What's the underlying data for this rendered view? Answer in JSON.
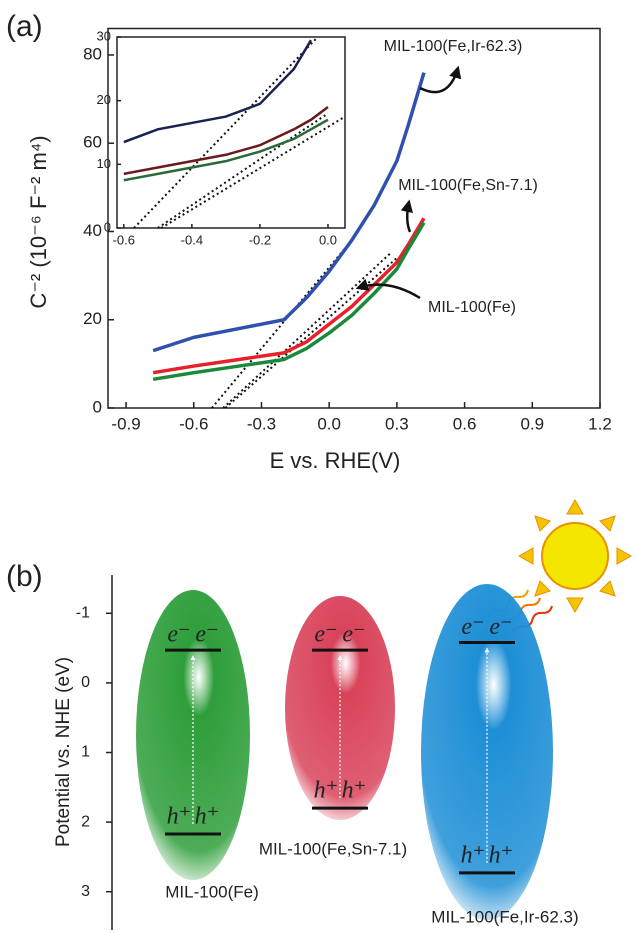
{
  "chart_data": [
    {
      "type": "line",
      "panel_label": "(a)",
      "x_label": "E vs. RHE(V)",
      "y_label": "C⁻² (10⁻⁶ F⁻² m⁴)",
      "x": [
        -0.78,
        -0.6,
        -0.4,
        -0.2,
        -0.1,
        0.0,
        0.1,
        0.2,
        0.3,
        0.35,
        0.42
      ],
      "series": [
        {
          "name": "MIL-100(Fe,Ir-62.3)",
          "color": "#3050b0",
          "values": [
            13,
            16,
            18,
            20,
            25,
            31,
            38,
            46,
            56,
            64,
            76
          ]
        },
        {
          "name": "MIL-100(Fe,Sn-7.1)",
          "color": "#e8202a",
          "values": [
            8,
            9.5,
            11,
            12.5,
            15,
            19,
            23,
            28,
            33,
            37,
            43
          ]
        },
        {
          "name": "MIL-100(Fe)",
          "color": "#1a8a3a",
          "values": [
            6.5,
            8,
            9.5,
            11,
            13.5,
            17,
            21,
            26,
            31.5,
            36,
            42
          ]
        }
      ],
      "fits": [
        {
          "x": [
            -0.52,
            0.1
          ],
          "values": [
            0,
            38
          ]
        },
        {
          "x": [
            -0.47,
            0.27
          ],
          "values": [
            0,
            35
          ]
        },
        {
          "x": [
            -0.46,
            0.3
          ],
          "values": [
            0,
            34
          ]
        }
      ],
      "xlim": [
        -0.98,
        1.2
      ],
      "xticks": [
        -0.9,
        -0.6,
        -0.3,
        {
          "value": 0,
          "label": "0.0"
        },
        0.3,
        0.6,
        0.9,
        1.2
      ],
      "ylim": [
        0,
        86
      ],
      "yticks": [
        0,
        20,
        40,
        60,
        80
      ]
    },
    {
      "type": "line",
      "x": [
        -0.6,
        -0.5,
        -0.4,
        -0.3,
        -0.2,
        -0.1,
        -0.05,
        0.0
      ],
      "series": [
        {
          "color": "#1a2050",
          "values": [
            13.5,
            15.5,
            16.5,
            17.5,
            19.5,
            25,
            29.5,
            null
          ]
        },
        {
          "color": "#6a1a1a",
          "values": [
            8.5,
            9.5,
            10.5,
            11.5,
            13,
            15.5,
            17,
            19
          ]
        },
        {
          "color": "#2a6a3a",
          "values": [
            7.5,
            8.5,
            9.5,
            10.5,
            12,
            14,
            15.5,
            17
          ]
        }
      ],
      "fits": [
        {
          "x": [
            -0.57,
            -0.03
          ],
          "values": [
            0,
            30
          ]
        },
        {
          "x": [
            -0.5,
            0.0
          ],
          "values": [
            0,
            18
          ]
        },
        {
          "x": [
            -0.49,
            0.05
          ],
          "values": [
            0,
            17.5
          ]
        }
      ],
      "xlim": [
        -0.62,
        0.05
      ],
      "xticks": [
        -0.6,
        -0.4,
        -0.2,
        {
          "value": 0,
          "label": "0.0"
        }
      ],
      "ylim": [
        0,
        30
      ],
      "yticks": [
        0,
        10,
        20,
        30
      ]
    },
    {
      "type": "band",
      "panel_label": "(b)",
      "y_label": "Potential vs. NHE (eV)",
      "categories": [
        "MIL-100(Fe)",
        "MIL-100(Fe,Sn-7.1)",
        "MIL-100(Fe,Ir-62.3)"
      ],
      "cb": [
        -0.47,
        -0.47,
        -0.58
      ],
      "vb": [
        2.17,
        1.8,
        2.73
      ],
      "colors": [
        "#2e9e3a",
        "#d9435a",
        "#1e8fd6"
      ],
      "electron_label": "e⁻",
      "hole_label": "h⁺",
      "ylim": [
        -1.55,
        3.55
      ],
      "yticks": [
        -1,
        0,
        1,
        2,
        3
      ]
    }
  ]
}
